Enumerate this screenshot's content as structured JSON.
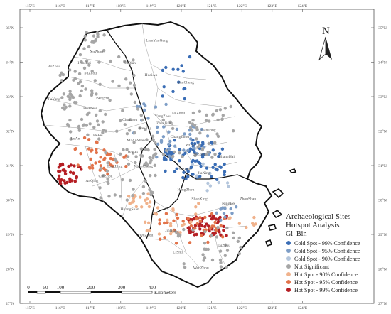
{
  "map": {
    "lon_labels": [
      "115°E",
      "116°E",
      "117°E",
      "118°E",
      "119°E",
      "120°E",
      "121°E",
      "122°E",
      "123°E",
      "124°E"
    ],
    "lat_labels": [
      "35°N",
      "34°N",
      "33°N",
      "32°N",
      "31°N",
      "30°N",
      "29°N",
      "28°N",
      "27°N"
    ],
    "north_label": "N",
    "cities": [
      {
        "name": "XuZhou",
        "lon": 117.2,
        "lat": 34.27
      },
      {
        "name": "LianYunGang",
        "lon": 119.2,
        "lat": 34.6
      },
      {
        "name": "HuaiBei",
        "lon": 116.8,
        "lat": 33.95
      },
      {
        "name": "SuZhou",
        "lon": 117.0,
        "lat": 33.65
      },
      {
        "name": "SuQian",
        "lon": 118.3,
        "lat": 33.95
      },
      {
        "name": "HuaiAn",
        "lon": 119.0,
        "lat": 33.6
      },
      {
        "name": "YanCheng",
        "lon": 120.15,
        "lat": 33.38
      },
      {
        "name": "BoZhou",
        "lon": 115.8,
        "lat": 33.85
      },
      {
        "name": "BengBu",
        "lon": 117.4,
        "lat": 32.93
      },
      {
        "name": "FuYang",
        "lon": 115.8,
        "lat": 32.9
      },
      {
        "name": "HuaiNan",
        "lon": 117.0,
        "lat": 32.63
      },
      {
        "name": "ChuZhou",
        "lon": 118.3,
        "lat": 32.3
      },
      {
        "name": "YangZhou",
        "lon": 119.4,
        "lat": 32.4
      },
      {
        "name": "TaiZhou",
        "lon": 119.9,
        "lat": 32.5
      },
      {
        "name": "NanTong",
        "lon": 120.9,
        "lat": 32.0
      },
      {
        "name": "LuAn",
        "lon": 116.5,
        "lat": 31.75
      },
      {
        "name": "HeFei",
        "lon": 117.25,
        "lat": 31.85
      },
      {
        "name": "ZhenJiang",
        "lon": 119.45,
        "lat": 32.2
      },
      {
        "name": "NanJing",
        "lon": 118.8,
        "lat": 32.05
      },
      {
        "name": "ChangZhou",
        "lon": 119.95,
        "lat": 31.8
      },
      {
        "name": "MaAnShan",
        "lon": 118.5,
        "lat": 31.7
      },
      {
        "name": "WuXi",
        "lon": 120.3,
        "lat": 31.57
      },
      {
        "name": "SuZhou",
        "lon": 120.6,
        "lat": 31.3
      },
      {
        "name": "WuHu",
        "lon": 118.4,
        "lat": 31.35
      },
      {
        "name": "ShangHai",
        "lon": 121.5,
        "lat": 31.23
      },
      {
        "name": "TongLing",
        "lon": 117.8,
        "lat": 30.95
      },
      {
        "name": "XuanCheng",
        "lon": 118.75,
        "lat": 30.95
      },
      {
        "name": "HuZhou",
        "lon": 120.1,
        "lat": 30.87
      },
      {
        "name": "JiaXing",
        "lon": 120.75,
        "lat": 30.75
      },
      {
        "name": "ChiZhou",
        "lon": 117.5,
        "lat": 30.66
      },
      {
        "name": "AnQing",
        "lon": 117.05,
        "lat": 30.53
      },
      {
        "name": "HangZhou",
        "lon": 120.15,
        "lat": 30.27
      },
      {
        "name": "HuangShan",
        "lon": 118.3,
        "lat": 29.7
      },
      {
        "name": "ShaoXing",
        "lon": 120.6,
        "lat": 30.0
      },
      {
        "name": "NingBo",
        "lon": 121.55,
        "lat": 29.87
      },
      {
        "name": "ZhouShan",
        "lon": 122.2,
        "lat": 30.0
      },
      {
        "name": "JinHua",
        "lon": 119.65,
        "lat": 29.08
      },
      {
        "name": "QuZhou",
        "lon": 118.85,
        "lat": 28.95
      },
      {
        "name": "TaiZhou",
        "lon": 121.4,
        "lat": 28.65
      },
      {
        "name": "LiShui",
        "lon": 119.9,
        "lat": 28.45
      },
      {
        "name": "WenZhou",
        "lon": 120.65,
        "lat": 28.0
      }
    ]
  },
  "legend": {
    "title_line1": "Archaeological Sites",
    "title_line2": "Hotspot Analysis",
    "field": "Gi_Bin",
    "items": [
      {
        "label": "Cold Spot - 99% Confidence",
        "color": "#3a6db5"
      },
      {
        "label": "Cold Spot - 95% Confidence",
        "color": "#7d9dc6"
      },
      {
        "label": "Cold Spot - 90% Confidence",
        "color": "#b4c6dc"
      },
      {
        "label": "Not Significant",
        "color": "#a6a6a6"
      },
      {
        "label": "Hot Spot - 90% Confidence",
        "color": "#f0b28c"
      },
      {
        "label": "Hot Spot - 95% Confidence",
        "color": "#e2734a"
      },
      {
        "label": "Hot Spot - 99% Confidence",
        "color": "#b51f24"
      }
    ]
  },
  "scale_bar": {
    "labels": [
      "0",
      "50",
      "100",
      "200",
      "300",
      "400"
    ],
    "unit": "Kilometers"
  }
}
